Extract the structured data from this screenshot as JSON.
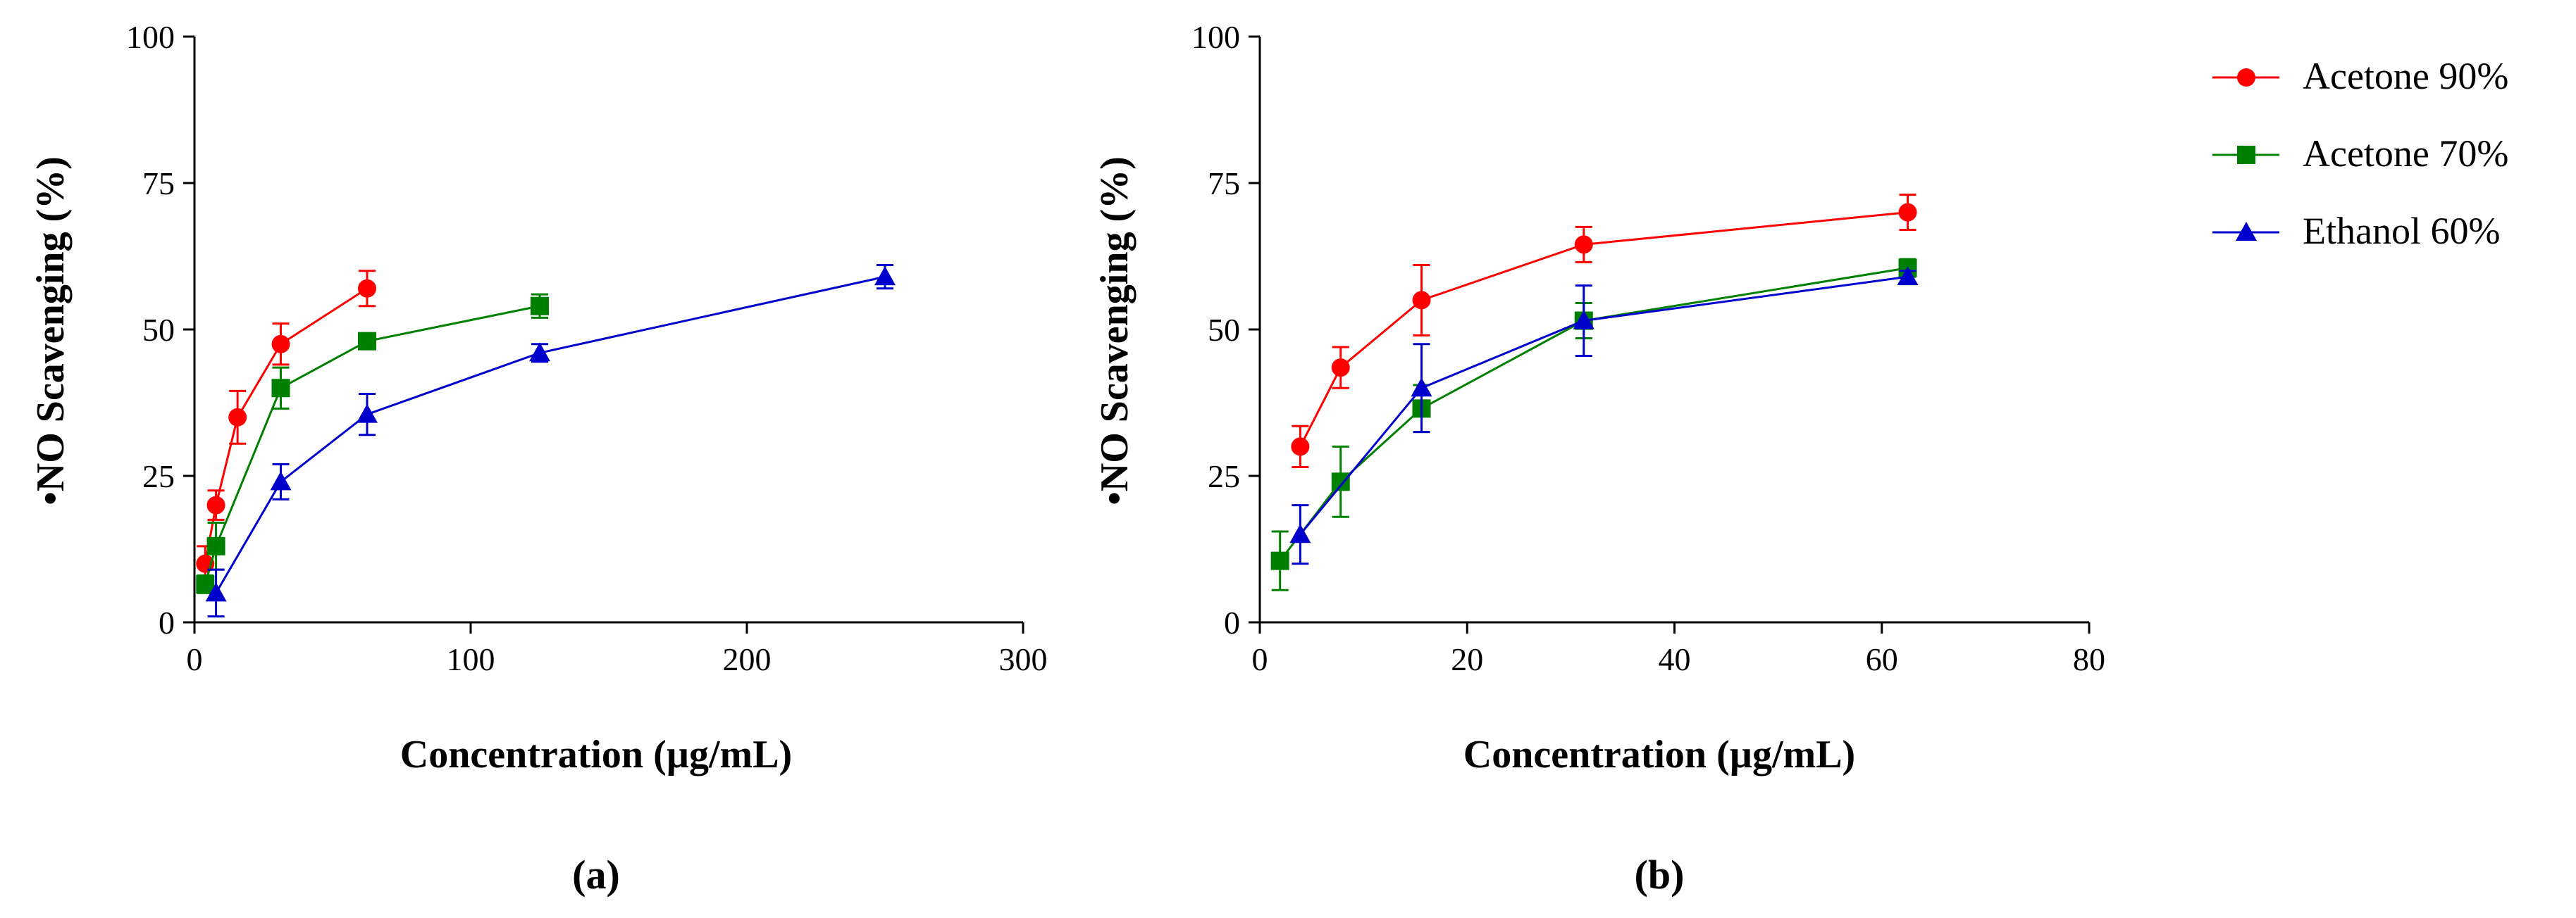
{
  "figure": {
    "panel_labels": [
      "(a)",
      "(b)"
    ]
  },
  "colors": {
    "Acetone 90%": "#ff0000",
    "Acetone 70%": "#008000",
    "Ethanol 60%": "#0000cc"
  },
  "markers": {
    "Acetone 90%": "circle",
    "Acetone 70%": "square",
    "Ethanol 60%": "triangle"
  },
  "legend": {
    "entries": [
      "Acetone 90%",
      "Acetone 70%",
      "Ethanol 60%"
    ]
  },
  "chart_data": [
    {
      "type": "line",
      "panel": "(a)",
      "xlabel": "Concentration (µg/mL)",
      "ylabel": "•NO Scavenging (%)",
      "xlim": [
        0,
        300
      ],
      "ylim": [
        0,
        100
      ],
      "xticks": [
        0,
        100,
        200,
        300
      ],
      "yticks": [
        0,
        25,
        50,
        75,
        100
      ],
      "series": [
        {
          "name": "Acetone 90%",
          "points": [
            {
              "x": 3.9,
              "y": 10,
              "err": 3
            },
            {
              "x": 7.8,
              "y": 20,
              "err": 2.5
            },
            {
              "x": 15.6,
              "y": 35,
              "err": 4.5
            },
            {
              "x": 31.25,
              "y": 47.5,
              "err": 3.5
            },
            {
              "x": 62.5,
              "y": 57,
              "err": 3
            }
          ]
        },
        {
          "name": "Acetone 70%",
          "points": [
            {
              "x": 3.9,
              "y": 6.5,
              "err": 1.5
            },
            {
              "x": 7.8,
              "y": 13,
              "err": 4
            },
            {
              "x": 31.25,
              "y": 40,
              "err": 3.5
            },
            {
              "x": 62.5,
              "y": 48,
              "err": 1
            },
            {
              "x": 125,
              "y": 54,
              "err": 2
            }
          ]
        },
        {
          "name": "Ethanol 60%",
          "points": [
            {
              "x": 7.8,
              "y": 5,
              "err": 4
            },
            {
              "x": 31.25,
              "y": 24,
              "err": 3
            },
            {
              "x": 62.5,
              "y": 35.5,
              "err": 3.5
            },
            {
              "x": 125,
              "y": 46,
              "err": 1.5
            },
            {
              "x": 250,
              "y": 59,
              "err": 2
            }
          ]
        }
      ]
    },
    {
      "type": "line",
      "panel": "(b)",
      "xlabel": "Concentration (µg/mL)",
      "ylabel": "•NO Scavenging (%)",
      "xlim": [
        0,
        80
      ],
      "ylim": [
        0,
        100
      ],
      "xticks": [
        0,
        20,
        40,
        60,
        80
      ],
      "yticks": [
        0,
        25,
        50,
        75,
        100
      ],
      "series": [
        {
          "name": "Acetone 90%",
          "points": [
            {
              "x": 3.9,
              "y": 30,
              "err": 3.5
            },
            {
              "x": 7.8,
              "y": 43.5,
              "err": 3.5
            },
            {
              "x": 15.6,
              "y": 55,
              "err": 6
            },
            {
              "x": 31.25,
              "y": 64.5,
              "err": 3
            },
            {
              "x": 62.5,
              "y": 70,
              "err": 3
            }
          ]
        },
        {
          "name": "Acetone 70%",
          "points": [
            {
              "x": 1.95,
              "y": 10.5,
              "err": 5
            },
            {
              "x": 7.8,
              "y": 24,
              "err": 6
            },
            {
              "x": 15.6,
              "y": 36.5,
              "err": 4
            },
            {
              "x": 31.25,
              "y": 51.5,
              "err": 3
            },
            {
              "x": 62.5,
              "y": 60.5,
              "err": 1.5
            }
          ]
        },
        {
          "name": "Ethanol 60%",
          "points": [
            {
              "x": 3.9,
              "y": 15,
              "err": 5
            },
            {
              "x": 15.6,
              "y": 40,
              "err": 7.5
            },
            {
              "x": 31.25,
              "y": 51.5,
              "err": 6
            },
            {
              "x": 62.5,
              "y": 59,
              "err": 1
            }
          ]
        }
      ]
    }
  ]
}
